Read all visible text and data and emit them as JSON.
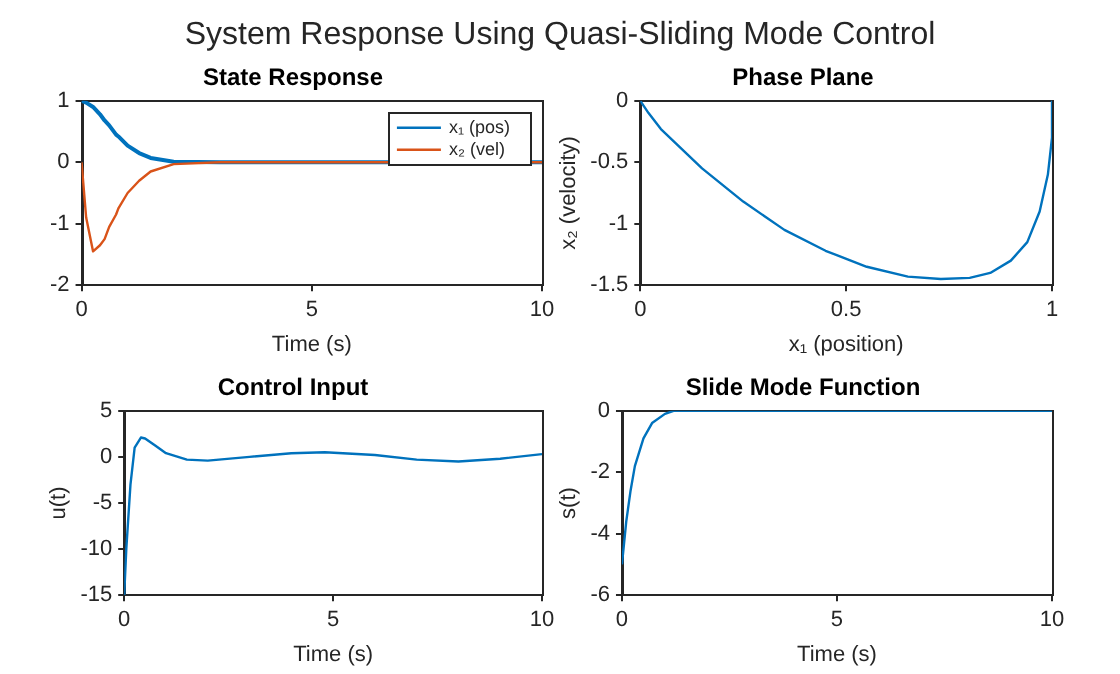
{
  "chart_data": [
    {
      "type": "other",
      "title": "System Response Using Quasi-Sliding Mode Control"
    },
    {
      "type": "line",
      "title": "State Response",
      "xlabel": "Time (s)",
      "xlim": [
        0,
        10
      ],
      "xticks": [
        0,
        5,
        10
      ],
      "ylim": [
        -2,
        1
      ],
      "yticks": [
        -2,
        -1,
        0,
        1
      ],
      "legend": "top right",
      "x": [
        0,
        0.1,
        0.25,
        0.4,
        0.5,
        0.6,
        0.75,
        0.8,
        1,
        1.25,
        1.5,
        2,
        3,
        10
      ],
      "series": [
        {
          "name": "x₁ (pos)",
          "color": "#0072bd",
          "values": [
            1,
            0.97,
            0.9,
            0.78,
            0.68,
            0.6,
            0.45,
            0.42,
            0.27,
            0.15,
            0.07,
            0.01,
            0,
            0
          ]
        },
        {
          "name": "x₂ (vel)",
          "color": "#d95319",
          "values": [
            0,
            -0.9,
            -1.45,
            -1.35,
            -1.25,
            -1.05,
            -0.85,
            -0.75,
            -0.5,
            -0.3,
            -0.15,
            -0.03,
            0,
            0
          ]
        }
      ]
    },
    {
      "type": "line",
      "title": "Phase Plane",
      "xlabel": "x₁ (position)",
      "ylabel": "x₂ (velocity)",
      "xlim": [
        0,
        1
      ],
      "xticks": [
        0,
        0.5,
        1
      ],
      "ylim": [
        -1.5,
        0
      ],
      "yticks": [
        -1.5,
        -1,
        -0.5,
        0
      ],
      "series": [
        {
          "color": "#0072bd",
          "x": [
            1,
            1,
            0.99,
            0.97,
            0.94,
            0.9,
            0.85,
            0.8,
            0.73,
            0.65,
            0.55,
            0.45,
            0.35,
            0.25,
            0.15,
            0.05,
            0.02,
            0
          ],
          "values": [
            0,
            -0.3,
            -0.6,
            -0.9,
            -1.15,
            -1.3,
            -1.4,
            -1.44,
            -1.45,
            -1.43,
            -1.35,
            -1.22,
            -1.05,
            -0.82,
            -0.55,
            -0.23,
            -0.1,
            0
          ]
        }
      ]
    },
    {
      "type": "line",
      "title": "Control Input",
      "xlabel": "Time (s)",
      "ylabel": "u(t)",
      "xlim": [
        0,
        10
      ],
      "xticks": [
        0,
        5,
        10
      ],
      "ylim": [
        -15,
        5
      ],
      "yticks": [
        -15,
        -10,
        -5,
        0,
        5
      ],
      "series": [
        {
          "color": "#0072bd",
          "x": [
            0,
            0.05,
            0.15,
            0.25,
            0.4,
            0.5,
            0.75,
            1,
            1.5,
            2,
            3,
            4,
            4.8,
            6,
            7,
            8,
            9,
            10
          ],
          "values": [
            -15,
            -10,
            -3,
            1,
            2.1,
            2,
            1.2,
            0.4,
            -0.3,
            -0.4,
            0,
            0.4,
            0.5,
            0.2,
            -0.3,
            -0.5,
            -0.2,
            0.3
          ]
        }
      ]
    },
    {
      "type": "line",
      "title": "Slide Mode Function",
      "xlabel": "Time (s)",
      "ylabel": "s(t)",
      "xlim": [
        0,
        10
      ],
      "xticks": [
        0,
        5,
        10
      ],
      "ylim": [
        -6,
        0
      ],
      "yticks": [
        -6,
        -4,
        -2,
        0
      ],
      "series": [
        {
          "color": "#0072bd",
          "x": [
            0,
            0.1,
            0.2,
            0.3,
            0.5,
            0.7,
            1,
            1.2,
            10
          ],
          "values": [
            -5,
            -3.6,
            -2.6,
            -1.8,
            -0.9,
            -0.4,
            -0.1,
            0,
            0
          ]
        }
      ]
    }
  ]
}
